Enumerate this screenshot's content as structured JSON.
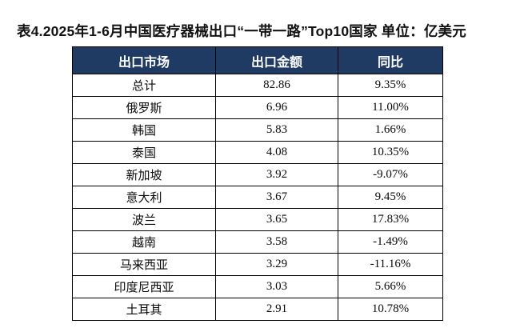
{
  "title": "表4.2025年1-6月中国医疗器械出口“一带一路”Top10国家 单位：亿美元",
  "colors": {
    "page_bg": "#ffffff",
    "header_bg": "#1f3a63",
    "header_text": "#ffffff",
    "border": "#000000",
    "cell_text": "#0a0a0a",
    "title_text": "#121212"
  },
  "chart_data": {
    "type": "table",
    "title": "表4.2025年1-6月中国医疗器械出口“一带一路”Top10国家",
    "unit_label": "单位：亿美元",
    "full_title": "表4.2025年1-6月中国医疗器械出口“一带一路”Top10国家 单位：亿美元",
    "columns": [
      "出口市场",
      "出口金额",
      "同比"
    ],
    "rows": [
      [
        "总计",
        "82.86",
        "9.35%"
      ],
      [
        "俄罗斯",
        "6.96",
        "11.00%"
      ],
      [
        "韩国",
        "5.83",
        "1.66%"
      ],
      [
        "泰国",
        "4.08",
        "10.35%"
      ],
      [
        "新加坡",
        "3.92",
        "-9.07%"
      ],
      [
        "意大利",
        "3.67",
        "9.45%"
      ],
      [
        "波兰",
        "3.65",
        "17.83%"
      ],
      [
        "越南",
        "3.58",
        "-1.49%"
      ],
      [
        "马来西亚",
        "3.29",
        "-11.16%"
      ],
      [
        "印度尼西亚",
        "3.03",
        "5.66%"
      ],
      [
        "土耳其",
        "2.91",
        "10.78%"
      ]
    ]
  }
}
